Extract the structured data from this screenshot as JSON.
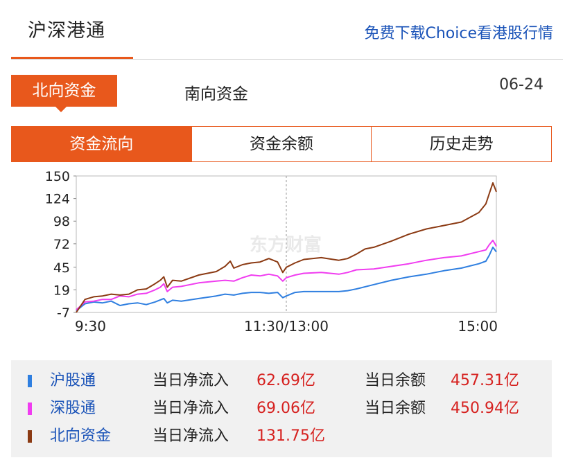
{
  "header": {
    "title": "沪深港通",
    "download_link": "免费下载Choice看港股行情"
  },
  "subtabs": {
    "active": "北向资金",
    "inactive": "南向资金",
    "date": "06-24"
  },
  "tabs": [
    {
      "label": "资金流向",
      "active": true
    },
    {
      "label": "资金余额",
      "active": false
    },
    {
      "label": "历史走势",
      "active": false
    }
  ],
  "chart_data": {
    "type": "line",
    "title": "",
    "xlabel": "",
    "ylabel": "",
    "ylim": [
      -7,
      150
    ],
    "yticks": [
      "150",
      "124",
      "98",
      "72",
      "45",
      "19",
      "-7"
    ],
    "xticks": [
      {
        "t": 0,
        "label": "9:30"
      },
      {
        "t": 120,
        "label": "11:30/13:00"
      },
      {
        "t": 240,
        "label": "15:00"
      }
    ],
    "xlim": [
      0,
      240
    ],
    "grid": "vertical dashed line at 11:30/13:00",
    "watermark": "东方财富",
    "series": [
      {
        "name": "沪股通",
        "color": "#2f7fe0",
        "points": [
          [
            0,
            -5
          ],
          [
            5,
            3
          ],
          [
            10,
            5
          ],
          [
            15,
            4
          ],
          [
            20,
            6
          ],
          [
            25,
            1
          ],
          [
            30,
            3
          ],
          [
            35,
            4
          ],
          [
            40,
            2
          ],
          [
            45,
            5
          ],
          [
            50,
            9
          ],
          [
            52,
            4
          ],
          [
            55,
            7
          ],
          [
            60,
            6
          ],
          [
            70,
            9
          ],
          [
            80,
            12
          ],
          [
            85,
            14
          ],
          [
            90,
            13
          ],
          [
            95,
            15
          ],
          [
            100,
            16
          ],
          [
            105,
            16
          ],
          [
            110,
            15
          ],
          [
            115,
            16
          ],
          [
            118,
            10
          ],
          [
            120,
            12
          ],
          [
            125,
            16
          ],
          [
            130,
            17
          ],
          [
            140,
            17
          ],
          [
            150,
            17
          ],
          [
            155,
            18
          ],
          [
            160,
            20
          ],
          [
            170,
            25
          ],
          [
            180,
            30
          ],
          [
            190,
            34
          ],
          [
            200,
            37
          ],
          [
            210,
            41
          ],
          [
            220,
            44
          ],
          [
            230,
            49
          ],
          [
            234,
            52
          ],
          [
            236,
            59
          ],
          [
            238,
            68
          ],
          [
            240,
            62.69
          ]
        ]
      },
      {
        "name": "深股通",
        "color": "#f03cf0",
        "points": [
          [
            0,
            -4
          ],
          [
            5,
            5
          ],
          [
            10,
            6
          ],
          [
            15,
            8
          ],
          [
            20,
            8
          ],
          [
            25,
            12
          ],
          [
            30,
            11
          ],
          [
            35,
            14
          ],
          [
            40,
            15
          ],
          [
            45,
            19
          ],
          [
            48,
            22
          ],
          [
            50,
            26
          ],
          [
            52,
            17
          ],
          [
            55,
            22
          ],
          [
            60,
            23
          ],
          [
            70,
            27
          ],
          [
            80,
            29
          ],
          [
            85,
            30
          ],
          [
            90,
            29
          ],
          [
            95,
            33
          ],
          [
            100,
            36
          ],
          [
            105,
            35
          ],
          [
            110,
            37
          ],
          [
            115,
            35
          ],
          [
            118,
            29
          ],
          [
            120,
            33
          ],
          [
            125,
            36
          ],
          [
            130,
            38
          ],
          [
            140,
            39
          ],
          [
            150,
            37
          ],
          [
            155,
            39
          ],
          [
            160,
            42
          ],
          [
            170,
            43
          ],
          [
            180,
            46
          ],
          [
            190,
            49
          ],
          [
            200,
            53
          ],
          [
            210,
            56
          ],
          [
            220,
            58
          ],
          [
            230,
            63
          ],
          [
            234,
            65
          ],
          [
            236,
            71
          ],
          [
            238,
            76
          ],
          [
            240,
            69.06
          ]
        ]
      },
      {
        "name": "北向资金",
        "color": "#8b3a13",
        "points": [
          [
            0,
            -7
          ],
          [
            5,
            8
          ],
          [
            10,
            11
          ],
          [
            15,
            12
          ],
          [
            20,
            14
          ],
          [
            25,
            13
          ],
          [
            30,
            14
          ],
          [
            35,
            19
          ],
          [
            40,
            20
          ],
          [
            45,
            26
          ],
          [
            48,
            30
          ],
          [
            50,
            34
          ],
          [
            52,
            22
          ],
          [
            55,
            30
          ],
          [
            60,
            29
          ],
          [
            70,
            36
          ],
          [
            80,
            40
          ],
          [
            85,
            46
          ],
          [
            88,
            52
          ],
          [
            90,
            44
          ],
          [
            95,
            48
          ],
          [
            100,
            50
          ],
          [
            105,
            51
          ],
          [
            110,
            55
          ],
          [
            115,
            51
          ],
          [
            118,
            39
          ],
          [
            120,
            45
          ],
          [
            125,
            50
          ],
          [
            130,
            54
          ],
          [
            140,
            56
          ],
          [
            150,
            53
          ],
          [
            155,
            55
          ],
          [
            160,
            60
          ],
          [
            165,
            66
          ],
          [
            170,
            68
          ],
          [
            180,
            75
          ],
          [
            190,
            83
          ],
          [
            200,
            89
          ],
          [
            210,
            93
          ],
          [
            215,
            95
          ],
          [
            220,
            97
          ],
          [
            230,
            108
          ],
          [
            234,
            118
          ],
          [
            236,
            130
          ],
          [
            238,
            142
          ],
          [
            240,
            131.75
          ]
        ]
      }
    ]
  },
  "legend": [
    {
      "name": "沪股通",
      "color": "#2f7fe0",
      "flow_label": "当日净流入",
      "flow_value": "62.69亿",
      "balance_label": "当日余额",
      "balance_value": "457.31亿"
    },
    {
      "name": "深股通",
      "color": "#f03cf0",
      "flow_label": "当日净流入",
      "flow_value": "69.06亿",
      "balance_label": "当日余额",
      "balance_value": "450.94亿"
    },
    {
      "name": "北向资金",
      "color": "#8b3a13",
      "flow_label": "当日净流入",
      "flow_value": "131.75亿"
    }
  ]
}
